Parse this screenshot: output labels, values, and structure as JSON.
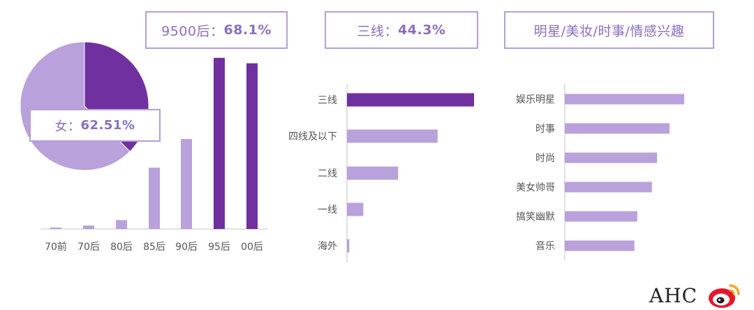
{
  "colors": {
    "dark": "#7030a0",
    "light": "#b9a1db",
    "axis": "#d9d9d9",
    "callout_border": "#b59fd6",
    "callout_text": "#8a6fbf"
  },
  "callouts": {
    "age": {
      "label": "9500后：",
      "value": "68.1%"
    },
    "city": {
      "label": "三线：",
      "value": "44.3%"
    },
    "interest": {
      "label": "明星/美妆/时事/情感兴趣"
    },
    "gender": {
      "label": "女：",
      "value": "62.51%"
    }
  },
  "logo": {
    "text": "AHC",
    "icon": "weibo-icon"
  },
  "chart_data": [
    {
      "type": "pie",
      "slices": [
        {
          "label": "女",
          "value": 62.51,
          "color": "#b9a1db"
        },
        {
          "label": "",
          "value": 37.49,
          "color": "#7030a0"
        }
      ]
    },
    {
      "type": "bar",
      "orientation": "vertical",
      "categories": [
        "70前",
        "70后",
        "80后",
        "85后",
        "90后",
        "95后",
        "00后"
      ],
      "values": [
        0.3,
        0.7,
        1.8,
        12.4,
        18.2,
        34.6,
        33.5
      ],
      "highlight": [
        false,
        false,
        false,
        false,
        false,
        true,
        true
      ],
      "ylim": [
        0,
        35
      ]
    },
    {
      "type": "bar",
      "orientation": "horizontal",
      "categories": [
        "三线",
        "四线及以下",
        "二线",
        "一线",
        "海外"
      ],
      "values": [
        44.3,
        31.6,
        17.8,
        5.7,
        0.8
      ],
      "highlight": [
        true,
        false,
        false,
        false,
        false
      ],
      "xlim": [
        0,
        44.3
      ]
    },
    {
      "type": "bar",
      "orientation": "horizontal",
      "categories": [
        "娱乐明星",
        "时事",
        "时尚",
        "美女帅哥",
        "搞笑幽默",
        "音乐"
      ],
      "values": [
        100,
        87.7,
        77.3,
        73.0,
        60.7,
        58.3
      ],
      "highlight": [
        false,
        false,
        false,
        false,
        false,
        false
      ],
      "xlim": [
        0,
        100
      ]
    }
  ]
}
